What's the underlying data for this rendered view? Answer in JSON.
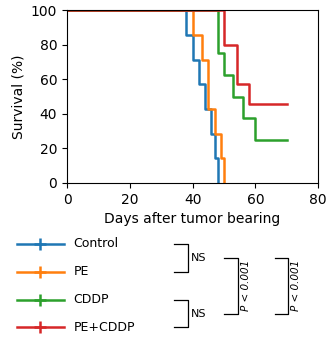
{
  "chart_data": {
    "type": "step",
    "x_label": "Days after tumor bearing",
    "y_label": "Survival (%)",
    "series": [
      {
        "name": "Control",
        "x": [
          0,
          38,
          38,
          40,
          40,
          42,
          42,
          44,
          44,
          46,
          46,
          47,
          47,
          48
        ],
        "values": [
          100,
          100,
          85.7,
          85.7,
          71.4,
          71.4,
          57.1,
          57.1,
          42.9,
          42.9,
          28.6,
          28.6,
          14.3,
          0
        ]
      },
      {
        "name": "PE",
        "x": [
          0,
          40,
          40,
          43,
          43,
          45,
          45,
          47,
          47,
          49,
          49,
          50
        ],
        "values": [
          100,
          100,
          85.7,
          85.7,
          71.4,
          71.4,
          42.9,
          42.9,
          28.6,
          28.6,
          14.3,
          0
        ]
      },
      {
        "name": "CDDP",
        "x": [
          0,
          48,
          48,
          50,
          50,
          53,
          53,
          56,
          56,
          60,
          60,
          70
        ],
        "values": [
          100,
          100,
          75.0,
          75.0,
          62.5,
          62.5,
          50.0,
          50.0,
          37.5,
          37.5,
          25.0,
          25.0
        ]
      },
      {
        "name": "PE+CDDP",
        "x": [
          0,
          50,
          50,
          54,
          54,
          58,
          58,
          63,
          63,
          70
        ],
        "values": [
          100,
          100,
          80.0,
          80.0,
          57.1,
          57.1,
          45.7,
          45.7,
          45.7,
          45.7
        ]
      }
    ],
    "xlim": [
      0,
      80
    ],
    "ylim": [
      0,
      100
    ],
    "xticks": [
      0,
      20,
      40,
      60,
      80
    ],
    "yticks": [
      0,
      20,
      40,
      60,
      80,
      100
    ],
    "legend": "below",
    "annotations": [
      {
        "text": "NS",
        "from": "Control",
        "to": "PE"
      },
      {
        "text": "NS",
        "from": "CDDP",
        "to": "PE+CDDP"
      },
      {
        "text": "P < 0.001",
        "from": [
          "Control",
          "PE"
        ],
        "to": [
          "CDDP",
          "PE+CDDP"
        ]
      },
      {
        "text": "P < 0.001",
        "from": [
          "Control",
          "PE"
        ],
        "to": [
          "CDDP",
          "PE+CDDP"
        ]
      }
    ]
  }
}
